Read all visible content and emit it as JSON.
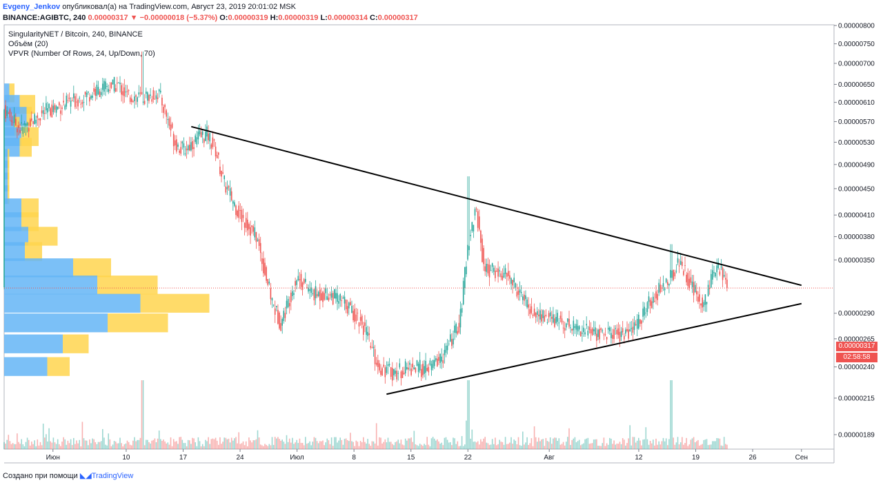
{
  "header": {
    "author": "Evgeny_Jenkov",
    "published_text": "опубликовал(а) на TradingView.com, Август 23, 2019 20:01:02 MSK"
  },
  "ohlc": {
    "symbol": "BINANCE:AGIBTC, 240",
    "last": "0.00000317",
    "change": "−0.00000018 (−5.37%)",
    "o_label": "O:",
    "o": "0.00000319",
    "h_label": "H:",
    "h": "0.00000319",
    "l_label": "L:",
    "l": "0.00000314",
    "c_label": "C:",
    "c": "0.00000317"
  },
  "legend": {
    "title": "SingularityNET / Bitcoin, 240, BINANCE",
    "volume": "Объём (20)",
    "vpvr": "VPVR (Number Of Rows, 24, Up/Down, 70)"
  },
  "footer": {
    "created": "Создано при помощи",
    "brand": "TradingView"
  },
  "badges": {
    "price": "0.00000317",
    "timer": "02:58:58"
  },
  "colors": {
    "up": "#26a69a",
    "down": "#ef5350",
    "vp_up": "#64b5f6",
    "vp_down": "#ffd54f",
    "trendline": "#000000"
  },
  "chart_data": {
    "type": "candlestick",
    "y_tick_labels": [
      "0.00000800",
      "0.00000750",
      "0.00000700",
      "0.00000650",
      "0.00000610",
      "0.00000570",
      "0.00000530",
      "0.00000490",
      "0.00000450",
      "0.00000410",
      "0.00000380",
      "0.00000350",
      "0.00000290",
      "0.00000265",
      "0.00000240",
      "0.00000215",
      "0.00000189"
    ],
    "y_scale": "log",
    "x_tick_labels": [
      "Июн",
      "10",
      "17",
      "24",
      "Июл",
      "8",
      "15",
      "22",
      "Авг",
      "12",
      "19",
      "26",
      "Сен"
    ],
    "x_tick_dates": [
      "2019-06-01",
      "2019-06-10",
      "2019-06-17",
      "2019-06-24",
      "2019-07-01",
      "2019-07-08",
      "2019-07-15",
      "2019-07-22",
      "2019-08-01",
      "2019-08-12",
      "2019-08-19",
      "2019-08-26",
      "2019-09-01"
    ],
    "x_range": [
      "2019-05-26",
      "2019-09-05"
    ],
    "last_price": 3.17e-06,
    "price_path": [
      [
        "2019-05-26",
        5.95e-06
      ],
      [
        "2019-05-28",
        5.55e-06
      ],
      [
        "2019-05-31",
        5.9e-06
      ],
      [
        "2019-06-03",
        6.1e-06
      ],
      [
        "2019-06-07",
        6.4e-06
      ],
      [
        "2019-06-09",
        6.5e-06
      ],
      [
        "2019-06-10",
        6.25e-06
      ],
      [
        "2019-06-12",
        6.2e-06
      ],
      [
        "2019-06-14",
        6.3e-06
      ],
      [
        "2019-06-15",
        5.8e-06
      ],
      [
        "2019-06-16",
        5.3e-06
      ],
      [
        "2019-06-17",
        5.15e-06
      ],
      [
        "2019-06-19",
        5.4e-06
      ],
      [
        "2019-06-20",
        5.45e-06
      ],
      [
        "2019-06-21",
        5.15e-06
      ],
      [
        "2019-06-22",
        4.6e-06
      ],
      [
        "2019-06-24",
        4.1e-06
      ],
      [
        "2019-06-26",
        3.8e-06
      ],
      [
        "2019-06-28",
        3e-06
      ],
      [
        "2019-06-29",
        2.8e-06
      ],
      [
        "2019-07-01",
        3.3e-06
      ],
      [
        "2019-07-03",
        3.1e-06
      ],
      [
        "2019-07-05",
        3.1e-06
      ],
      [
        "2019-07-07",
        3e-06
      ],
      [
        "2019-07-09",
        2.8e-06
      ],
      [
        "2019-07-11",
        2.4e-06
      ],
      [
        "2019-07-13",
        2.35e-06
      ],
      [
        "2019-07-15",
        2.4e-06
      ],
      [
        "2019-07-17",
        2.38e-06
      ],
      [
        "2019-07-19",
        2.5e-06
      ],
      [
        "2019-07-21",
        2.8e-06
      ],
      [
        "2019-07-22",
        3.7e-06
      ],
      [
        "2019-07-23",
        4.2e-06
      ],
      [
        "2019-07-24",
        3.4e-06
      ],
      [
        "2019-07-27",
        3.3e-06
      ],
      [
        "2019-07-30",
        2.9e-06
      ],
      [
        "2019-08-03",
        2.8e-06
      ],
      [
        "2019-08-07",
        2.7e-06
      ],
      [
        "2019-08-11",
        2.7e-06
      ],
      [
        "2019-08-14",
        3.1e-06
      ],
      [
        "2019-08-16",
        3.3e-06
      ],
      [
        "2019-08-17",
        3.5e-06
      ],
      [
        "2019-08-19",
        3.1e-06
      ],
      [
        "2019-08-20",
        3e-06
      ],
      [
        "2019-08-21",
        3.3e-06
      ],
      [
        "2019-08-22",
        3.4e-06
      ],
      [
        "2019-08-23",
        3.17e-06
      ]
    ],
    "spikes": [
      [
        "2019-06-12",
        7.3e-06
      ],
      [
        "2019-07-22",
        4.7e-06
      ],
      [
        "2019-08-16",
        3.7e-06
      ]
    ],
    "trendlines": [
      {
        "from": [
          "2019-06-18",
          5.6e-06
        ],
        "to": [
          "2019-09-01",
          3.2e-06
        ]
      },
      {
        "from": [
          "2019-07-12",
          2.18e-06
        ],
        "to": [
          "2019-09-01",
          3e-06
        ]
      }
    ],
    "vpvr": [
      {
        "price": 6.3e-06,
        "up": 0.3,
        "down": 0.3
      },
      {
        "price": 6.05e-06,
        "up": 0.9,
        "down": 0.9
      },
      {
        "price": 5.8e-06,
        "up": 1.3,
        "down": 0.3
      },
      {
        "price": 5.6e-06,
        "up": 0.6,
        "down": 0.3
      },
      {
        "price": 5.4e-06,
        "up": 1.0,
        "down": 1.0
      },
      {
        "price": 5.2e-06,
        "up": 0.9,
        "down": 0.7
      },
      {
        "price": 5e-06,
        "up": 0.2,
        "down": 0.1
      },
      {
        "price": 4.8e-06,
        "up": 0.2,
        "down": 0.1
      },
      {
        "price": 4.6e-06,
        "up": 0.2,
        "down": 0.1
      },
      {
        "price": 4.4e-06,
        "up": 0.2,
        "down": 0.1
      },
      {
        "price": 4.2e-06,
        "up": 1.0,
        "down": 1.0
      },
      {
        "price": 4e-06,
        "up": 1.0,
        "down": 1.0
      },
      {
        "price": 3.8e-06,
        "up": 1.4,
        "down": 1.7
      },
      {
        "price": 3.6e-06,
        "up": 1.2,
        "down": 1.0
      },
      {
        "price": 3.4e-06,
        "up": 4.0,
        "down": 2.2
      },
      {
        "price": 3.2e-06,
        "up": 5.4,
        "down": 3.5
      },
      {
        "price": 3e-06,
        "up": 7.9,
        "down": 4.0
      },
      {
        "price": 2.8e-06,
        "up": 6.0,
        "down": 3.5
      },
      {
        "price": 2.6e-06,
        "up": 3.4,
        "down": 1.5
      },
      {
        "price": 2.4e-06,
        "up": 2.5,
        "down": 1.3
      }
    ]
  }
}
